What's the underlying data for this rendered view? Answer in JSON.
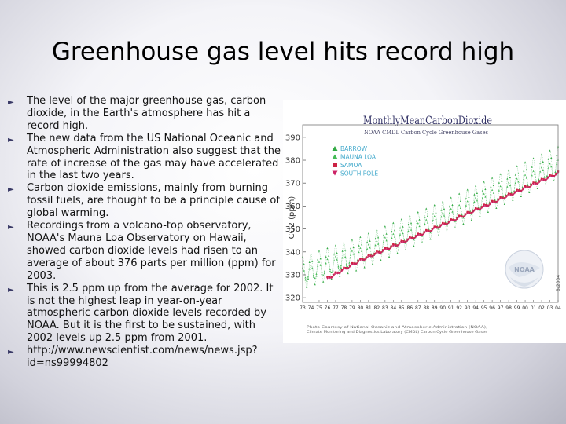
{
  "slide": {
    "title": "Greenhouse gas level hits record high",
    "bullets": [
      "The level of the major greenhouse gas, carbon dioxide, in the Earth's atmosphere has hit a record high.",
      "The new data from the US National Oceanic and Atmospheric Administration also suggest that the rate of increase of the gas may have accelerated in the last two years.",
      "Carbon dioxide emissions, mainly from burning fossil fuels, are thought to be a principle cause of global warming.",
      "Recordings from a volcano-top observatory, NOAA's Mauna Loa Observatory on Hawaii, showed carbon dioxide levels had risen to an average of about 376 parts per million (ppm) for 2003.",
      "This is 2.5 ppm up from the average for 2002. It is not the highest leap in year-on-year atmospheric carbon dioxide levels recorded by NOAA. But it is the first to be sustained, with 2002 levels up 2.5 ppm from 2001.",
      "http://www.newscientist.com/news/news.jsp?id=ns99994802"
    ],
    "bullet_icon": "triangle-right-icon"
  },
  "chart_data": {
    "type": "scatter",
    "title": "MonthlyMeanCarbonDioxide",
    "subtitle": "NOAA CMDL Carbon Cycle Greenhouse Gases",
    "ylabel": "CO2 (ppm)",
    "xlabel": "",
    "ylim": [
      318,
      392
    ],
    "xlim": [
      1973,
      2004
    ],
    "y_ticks": [
      320,
      330,
      340,
      350,
      360,
      370,
      380,
      390
    ],
    "x_tick_labels": [
      "73",
      "74",
      "75",
      "76",
      "77",
      "78",
      "79",
      "80",
      "81",
      "82",
      "83",
      "84",
      "85",
      "86",
      "87",
      "88",
      "89",
      "90",
      "91",
      "92",
      "93",
      "94",
      "95",
      "96",
      "97",
      "98",
      "99",
      "00",
      "01",
      "02",
      "03",
      "04"
    ],
    "legend": {
      "placement": "top-left",
      "entries": [
        "BARROW",
        "MAUNA LOA",
        "SAMOA",
        "SOUTH POLE"
      ]
    },
    "colors": {
      "BARROW": "#33aa44",
      "MAUNA LOA": "#44bb55",
      "SAMOA": "#cc2244",
      "SOUTH POLE": "#cc2266",
      "text": "#333366",
      "legend_text": "#44aacc",
      "axis": "#555555"
    },
    "series": [
      {
        "name": "MAUNA LOA",
        "marker": "triangle-up",
        "color": "#44bb55",
        "trend": [
          [
            1973,
            330
          ],
          [
            1980,
            338.5
          ],
          [
            1990,
            354
          ],
          [
            2004,
            377
          ]
        ],
        "seasonal_amplitude": 3.2
      },
      {
        "name": "BARROW",
        "marker": "triangle-up",
        "color": "#33aa44",
        "trend": [
          [
            1973,
            331
          ],
          [
            1980,
            339.5
          ],
          [
            1990,
            355
          ],
          [
            2004,
            379
          ]
        ],
        "seasonal_amplitude": 7.0
      },
      {
        "name": "SAMOA",
        "marker": "square",
        "color": "#cc2244",
        "trend": [
          [
            1976,
            328.5
          ],
          [
            1980,
            336.5
          ],
          [
            1990,
            352
          ],
          [
            2004,
            374.5
          ]
        ],
        "seasonal_amplitude": 0.6
      },
      {
        "name": "SOUTH POLE",
        "marker": "triangle-down",
        "color": "#cc2266",
        "trend": [
          [
            1976,
            328.0
          ],
          [
            1980,
            336.0
          ],
          [
            1990,
            351.5
          ],
          [
            2004,
            374.0
          ]
        ],
        "seasonal_amplitude": 0.4
      }
    ],
    "credit": "Photo Courtesy of National Oceanic and Atmospheric Administration (NOAA), Climate Monitoring and Diagnostics Laboratory (CMDL) Carbon Cycle Greenhouse Gases",
    "side_note": "8/2004",
    "logo": "noaa-logo"
  }
}
